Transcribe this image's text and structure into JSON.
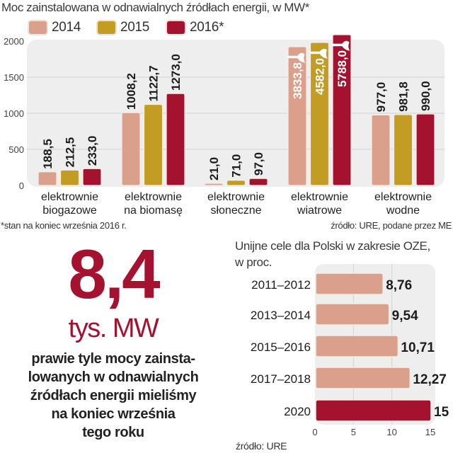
{
  "main_chart": {
    "title": "Moc zainstalowana w odnawialnych źródłach energii, w MW*",
    "footnote": "*stan na koniec września 2016 r.",
    "source": "źródło: URE, podane przez ME"
  },
  "highlight": {
    "value": "8,4",
    "unit": "tys. MW",
    "description_lines": [
      "prawie tyle mocy zainsta-",
      "lowanych w odnawialnych",
      "źródłach energii mieliśmy",
      "na koniec września",
      "tego roku"
    ]
  },
  "targets_chart": {
    "title_lines": [
      "Unijne cele dla Polski w zakresie OZE,",
      "w proc."
    ],
    "source": "źródło: URE"
  },
  "colors": {
    "c2014": "#dba08b",
    "c2015": "#c29c23",
    "c2016": "#a5122f",
    "plot_bg": "#eeeeee",
    "grid": "#d2d2d2"
  },
  "chart_data": [
    {
      "type": "bar",
      "title": "Moc zainstalowana w odnawialnych źródłach energii, w MW*",
      "xlabel": "",
      "ylabel": "MW",
      "ylim": [
        0,
        2000
      ],
      "yticks": [
        0,
        500,
        1000,
        1500,
        2000
      ],
      "grid": true,
      "legend_position": "top",
      "categories": [
        "elektrownie biogazowe",
        "elektrownie na biomasę",
        "elektrownie słoneczne",
        "elektrownie wiatrowe",
        "elektrownie wodne"
      ],
      "category_lines": [
        [
          "elektrownie",
          "biogazowe"
        ],
        [
          "elektrownie",
          "na biomasę"
        ],
        [
          "elektrownie",
          "słoneczne"
        ],
        [
          "elektrownie",
          "wiatrowe"
        ],
        [
          "elektrownie",
          "wodne"
        ]
      ],
      "series": [
        {
          "name": "2014",
          "values": [
            188.5,
            1008.2,
            21.0,
            3833.8,
            977.0
          ],
          "labels": [
            "188,5",
            "1008,2",
            "21,0",
            "3833,8",
            "977,0"
          ]
        },
        {
          "name": "2015",
          "values": [
            212.5,
            1122.7,
            71.0,
            4582.0,
            981.8
          ],
          "labels": [
            "212,5",
            "1122,7",
            "71,0",
            "4582,0",
            "981,8"
          ]
        },
        {
          "name": "2016*",
          "values": [
            233.0,
            1273.0,
            97.0,
            5788.0,
            990.0
          ],
          "labels": [
            "233,0",
            "1273,0",
            "97,0",
            "5788,0",
            "990,0"
          ]
        }
      ],
      "annotations": [
        "wind bars truncated with break marks (values exceed axis)"
      ]
    },
    {
      "type": "bar",
      "orientation": "horizontal",
      "title": "Unijne cele dla Polski w zakresie OZE, w proc.",
      "xlabel": "",
      "ylabel": "",
      "xlim": [
        0,
        15
      ],
      "xticks": [
        0,
        5,
        10,
        15
      ],
      "grid": true,
      "categories": [
        "2011–2012",
        "2013–2014",
        "2015–2016",
        "2017–2018",
        "2020"
      ],
      "values": [
        8.76,
        9.54,
        10.71,
        12.27,
        15
      ],
      "labels": [
        "8,76",
        "9,54",
        "10,71",
        "12,27",
        "15"
      ],
      "highlight_category": "2020"
    }
  ]
}
